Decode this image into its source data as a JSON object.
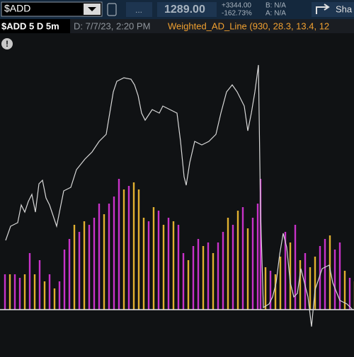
{
  "toolbar": {
    "symbol": "$ADD",
    "menu": "...",
    "last": "1289.00",
    "change": "+3344.00",
    "change_pct": "-162.73%",
    "bid": "B: N/A",
    "ask": "A: N/A",
    "share": "Sha"
  },
  "subheader": {
    "symbol_period": "$ADD 5 D 5m",
    "datetime": "D: 7/7/23, 2:20 PM",
    "study": "Weighted_AD_Line (930, 28.3, 13.4, 12"
  },
  "chart_data": {
    "type": "combo",
    "xlim": [
      0,
      495
    ],
    "ylim": [
      -30,
      378
    ],
    "line": {
      "color": "#d8d8d8",
      "x": [
        3,
        10,
        20,
        25,
        30,
        35,
        40,
        45,
        50,
        55,
        60,
        65,
        75,
        85,
        95,
        103,
        115,
        125,
        135,
        145,
        150,
        155,
        160,
        170,
        180,
        185,
        190,
        195,
        200,
        210,
        220,
        225,
        235,
        245,
        250,
        255,
        258,
        263,
        270,
        280,
        290,
        300,
        307,
        315,
        323,
        330,
        340,
        345,
        350,
        355,
        360,
        363,
        367,
        375,
        380,
        385,
        390,
        395,
        400,
        405,
        410,
        415,
        420,
        425,
        430,
        435,
        440,
        450,
        460,
        465,
        475,
        485,
        493
      ],
      "values": [
        98,
        118,
        123,
        148,
        138,
        153,
        163,
        138,
        178,
        183,
        158,
        148,
        118,
        168,
        173,
        198,
        213,
        223,
        238,
        248,
        278,
        308,
        323,
        328,
        326,
        318,
        303,
        278,
        268,
        283,
        278,
        288,
        283,
        278,
        238,
        188,
        176,
        208,
        238,
        233,
        238,
        248,
        278,
        308,
        318,
        308,
        288,
        253,
        278,
        308,
        346,
        138,
        3,
        8,
        18,
        38,
        78,
        108,
        88,
        38,
        18,
        23,
        58,
        38,
        18,
        -24,
        28,
        58,
        63,
        38,
        13,
        8,
        0
      ]
    },
    "bars": {
      "x": [
        2,
        9,
        16,
        23,
        30,
        37,
        44,
        51,
        58,
        65,
        72,
        79,
        86,
        93,
        100,
        107,
        114,
        121,
        128,
        135,
        142,
        149,
        156,
        163,
        170,
        177,
        184,
        191,
        198,
        205,
        212,
        219,
        226,
        233,
        240,
        247,
        254,
        261,
        268,
        275,
        282,
        289,
        296,
        303,
        310,
        317,
        324,
        331,
        338,
        345,
        352,
        359,
        363,
        370,
        377,
        384,
        391,
        398,
        405,
        412,
        419,
        426,
        433,
        440,
        447,
        454,
        461,
        468,
        475,
        482,
        489,
        496
      ],
      "values": [
        50,
        50,
        50,
        45,
        50,
        80,
        50,
        70,
        40,
        50,
        30,
        40,
        85,
        100,
        120,
        110,
        125,
        120,
        130,
        150,
        135,
        150,
        160,
        185,
        170,
        175,
        180,
        170,
        130,
        125,
        145,
        140,
        120,
        130,
        125,
        120,
        80,
        70,
        90,
        100,
        90,
        95,
        80,
        95,
        110,
        130,
        120,
        140,
        145,
        115,
        130,
        150,
        185,
        60,
        55,
        50,
        75,
        110,
        95,
        120,
        70,
        80,
        60,
        75,
        90,
        100,
        105,
        85,
        95,
        55,
        45,
        40
      ],
      "colors": [
        "#c832c8",
        "#e0b030",
        "#c832c8",
        "#c832c8",
        "#e0b030",
        "#c832c8",
        "#e0b030",
        "#c832c8",
        "#e0b030",
        "#c832c8",
        "#e0b030",
        "#c832c8",
        "#c832c8",
        "#c832c8",
        "#e0b030",
        "#c832c8",
        "#e0b030",
        "#c832c8",
        "#c832c8",
        "#c832c8",
        "#e0b030",
        "#c832c8",
        "#c832c8",
        "#c832c8",
        "#e0b030",
        "#c832c8",
        "#e0b030",
        "#e0b030",
        "#e0b030",
        "#c832c8",
        "#e0b030",
        "#c832c8",
        "#e0b030",
        "#c832c8",
        "#e0b030",
        "#c832c8",
        "#c832c8",
        "#e0b030",
        "#c832c8",
        "#c832c8",
        "#e0b030",
        "#c832c8",
        "#e0b030",
        "#c832c8",
        "#c832c8",
        "#e0b030",
        "#c832c8",
        "#e0b030",
        "#c832c8",
        "#e0b030",
        "#c832c8",
        "#c832c8",
        "#c832c8",
        "#e0b030",
        "#c832c8",
        "#e0b030",
        "#e0b030",
        "#c832c8",
        "#e0b030",
        "#c832c8",
        "#e0b030",
        "#c832c8",
        "#e0b030",
        "#e0b030",
        "#c832c8",
        "#c832c8",
        "#e0b030",
        "#c832c8",
        "#c832c8",
        "#e0b030",
        "#c832c8",
        "#e0b030"
      ]
    }
  }
}
